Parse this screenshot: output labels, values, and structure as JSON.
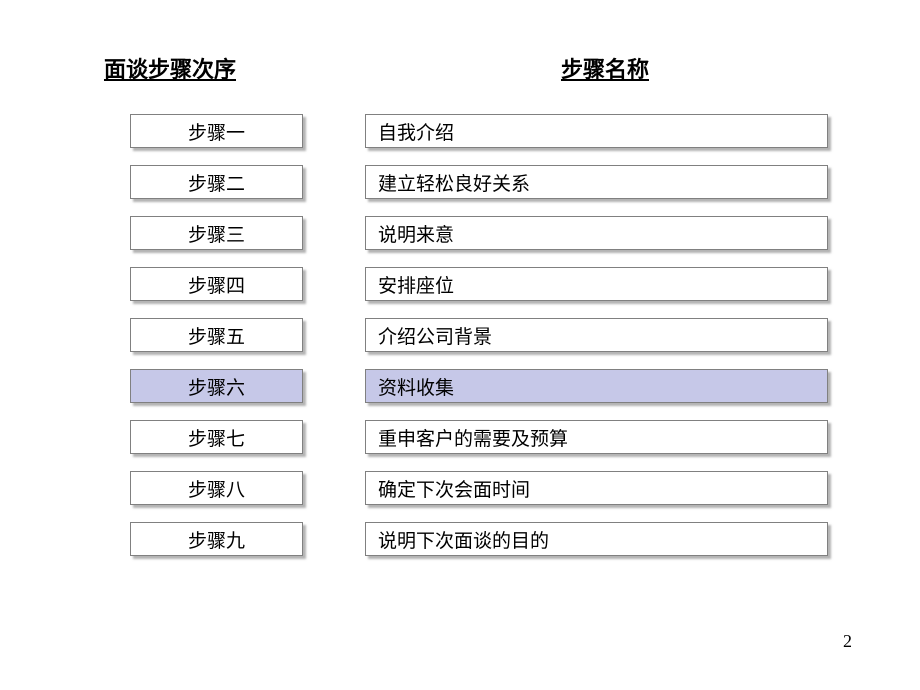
{
  "headers": {
    "left": "面谈步骤次序",
    "right": "步骤名称"
  },
  "steps": [
    {
      "number": "步骤一",
      "name": "自我介绍",
      "highlighted": false
    },
    {
      "number": "步骤二",
      "name": "建立轻松良好关系",
      "highlighted": false
    },
    {
      "number": "步骤三",
      "name": "说明来意",
      "highlighted": false
    },
    {
      "number": "步骤四",
      "name": "安排座位",
      "highlighted": false
    },
    {
      "number": "步骤五",
      "name": "介绍公司背景",
      "highlighted": false
    },
    {
      "number": "步骤六",
      "name": "资料收集",
      "highlighted": true
    },
    {
      "number": "步骤七",
      "name": "重申客户的需要及预算",
      "highlighted": false
    },
    {
      "number": "步骤八",
      "name": "确定下次会面时间",
      "highlighted": false
    },
    {
      "number": "步骤九",
      "name": "说明下次面谈的目的",
      "highlighted": false
    }
  ],
  "colors": {
    "highlight_bg": "#c6c8e8",
    "normal_bg": "#ffffff",
    "border": "#808080",
    "text": "#000000"
  },
  "page_number": "2"
}
